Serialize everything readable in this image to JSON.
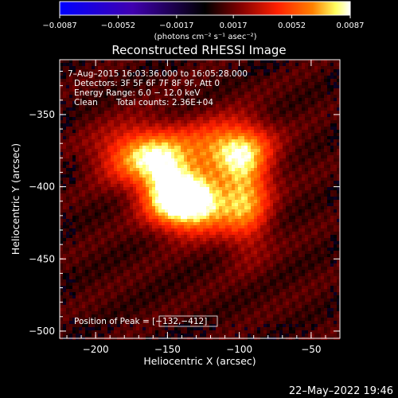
{
  "chart_data": {
    "type": "heatmap",
    "title": "Reconstructed RHESSI Image",
    "xlabel": "Heliocentric X (arcsec)",
    "ylabel": "Heliocentric Y (arcsec)",
    "xlim": [
      -225,
      -30
    ],
    "ylim": [
      -505,
      -312
    ],
    "x_ticks": [
      -200,
      -150,
      -100,
      -50
    ],
    "x_tick_labels": [
      "−200",
      "−150",
      "−100",
      "−50"
    ],
    "y_ticks": [
      -350,
      -400,
      -450,
      -500
    ],
    "y_tick_labels": [
      "−350",
      "−400",
      "−450",
      "−500"
    ],
    "colorbar": {
      "range": [
        -0.0087,
        0.0087
      ],
      "ticks": [
        -0.0087,
        -0.0052,
        -0.0017,
        0.0017,
        0.0052,
        0.0087
      ],
      "tick_labels": [
        "−0.0087",
        "−0.0052",
        "−0.0017",
        "0.0017",
        "0.0052",
        "0.0087"
      ],
      "unit_label": "(photons cm⁻² s⁻¹ asec⁻²)",
      "colors": [
        "#0000ff",
        "#4000b0",
        "#000000",
        "#800000",
        "#ff2000",
        "#ff8000",
        "#ffff60",
        "#ffffff"
      ]
    },
    "annotations": {
      "time_range": "7–Aug–2015 16:03:36.000 to 16:05:28.000",
      "detectors": "Detectors: 3F 5F 6F 7F 8F 9F, Att 0",
      "energy_range": "Energy Range: 6.0 − 12.0 keV",
      "clean_label": "Clean",
      "total_counts": "Total counts: 2.36E+04",
      "peak_position": "Position of Peak = [−132,−412]"
    },
    "peak": [
      -132,
      -412
    ],
    "sources": [
      {
        "x": -132,
        "y": -412,
        "peak": 0.0087,
        "sx": 18,
        "sy": 13
      },
      {
        "x": -165,
        "y": -378,
        "peak": 0.0062,
        "sx": 22,
        "sy": 14
      },
      {
        "x": -108,
        "y": -373,
        "peak": 0.0056,
        "sx": 20,
        "sy": 13
      },
      {
        "x": -95,
        "y": -405,
        "peak": 0.0052,
        "sx": 12,
        "sy": 25
      },
      {
        "x": -150,
        "y": -400,
        "peak": 0.0046,
        "sx": 14,
        "sy": 16
      }
    ],
    "background_level": 0.0012
  },
  "footer": {
    "date": "22–May–2022 19:46"
  }
}
